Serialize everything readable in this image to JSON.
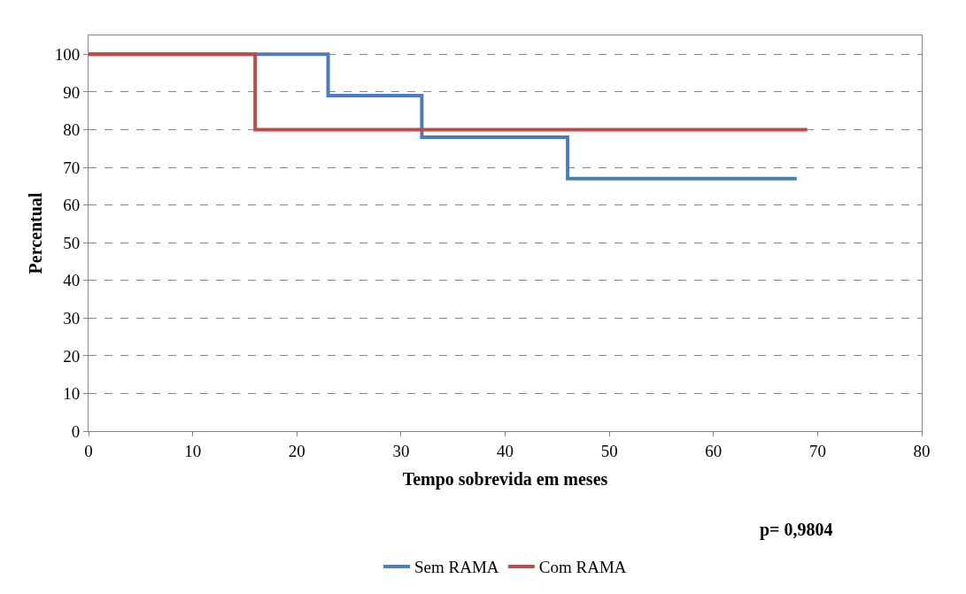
{
  "chart_data": {
    "type": "step",
    "xlabel": "Tempo sobrevida em meses",
    "ylabel": "Percentual",
    "annotations": [
      "p= 0,9804"
    ],
    "series": [
      {
        "name": "Sem RAMA",
        "color": "#4a7ebb",
        "x": [
          0,
          23,
          32,
          46,
          68
        ],
        "values": [
          100,
          89,
          78,
          67,
          67
        ]
      },
      {
        "name": "Com RAMA",
        "color": "#be4b48",
        "x": [
          0,
          16,
          69
        ],
        "values": [
          100,
          80,
          80
        ]
      }
    ],
    "xlim": [
      0,
      80
    ],
    "xticks": [
      0,
      10,
      20,
      30,
      40,
      50,
      60,
      70,
      80
    ],
    "ylim": [
      0,
      105
    ],
    "yticks": [
      0,
      10,
      20,
      30,
      40,
      50,
      60,
      70,
      80,
      90,
      100
    ],
    "grid": "y",
    "legend": "bottom",
    "marker": "none",
    "line_style": "solid"
  }
}
